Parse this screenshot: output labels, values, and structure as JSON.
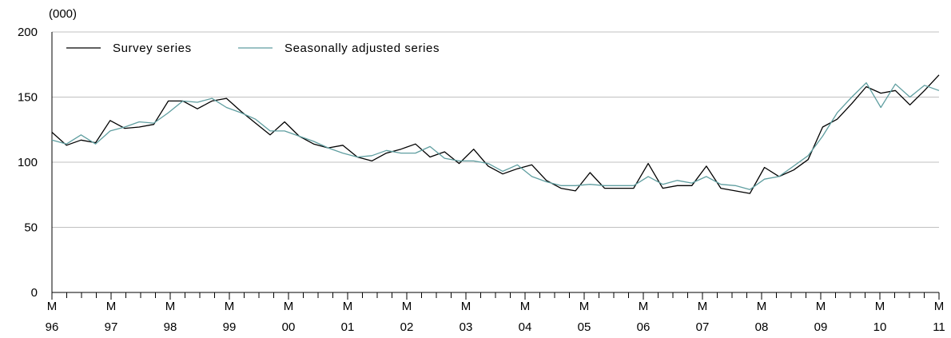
{
  "chart_data": {
    "type": "line",
    "unit_label": "(000)",
    "ylim": [
      0,
      200
    ],
    "y_ticks": [
      0,
      50,
      100,
      150,
      200
    ],
    "grid": "horizontal",
    "legend_position": "top-left",
    "x_period_start": "M 96",
    "x_period_end": "M 11",
    "x_tick_labels": [
      {
        "top": "M",
        "bottom": "96"
      },
      {
        "top": "M",
        "bottom": "97"
      },
      {
        "top": "M",
        "bottom": "98"
      },
      {
        "top": "M",
        "bottom": "99"
      },
      {
        "top": "M",
        "bottom": "00"
      },
      {
        "top": "M",
        "bottom": "01"
      },
      {
        "top": "M",
        "bottom": "02"
      },
      {
        "top": "M",
        "bottom": "03"
      },
      {
        "top": "M",
        "bottom": "04"
      },
      {
        "top": "M",
        "bottom": "05"
      },
      {
        "top": "M",
        "bottom": "06"
      },
      {
        "top": "M",
        "bottom": "07"
      },
      {
        "top": "M",
        "bottom": "08"
      },
      {
        "top": "M",
        "bottom": "09"
      },
      {
        "top": "M",
        "bottom": "10"
      },
      {
        "top": "M",
        "bottom": "11"
      }
    ],
    "series": [
      {
        "name": "Survey series",
        "color": "#000000",
        "values": [
          123,
          113,
          117,
          115,
          132,
          126,
          127,
          129,
          147,
          147,
          141,
          147,
          149,
          139,
          130,
          121,
          131,
          120,
          114,
          111,
          113,
          104,
          101,
          107,
          110,
          114,
          104,
          108,
          99,
          110,
          97,
          91,
          95,
          98,
          86,
          80,
          78,
          92,
          80,
          80,
          80,
          99,
          80,
          82,
          82,
          97,
          80,
          78,
          76,
          96,
          89,
          94,
          102,
          127,
          133,
          145,
          158,
          153,
          155,
          144,
          155,
          167
        ]
      },
      {
        "name": "Seasonally adjusted series",
        "color": "#5f9ea0",
        "values": [
          117,
          114,
          121,
          114,
          124,
          127,
          131,
          130,
          138,
          147,
          146,
          149,
          142,
          138,
          133,
          124,
          124,
          120,
          116,
          111,
          107,
          104,
          105,
          109,
          107,
          107,
          112,
          103,
          101,
          101,
          99,
          93,
          98,
          89,
          85,
          82,
          82,
          83,
          82,
          82,
          82,
          89,
          83,
          86,
          84,
          89,
          83,
          82,
          79,
          87,
          89,
          97,
          105,
          120,
          138,
          150,
          161,
          142,
          160,
          150,
          159,
          155
        ]
      }
    ]
  }
}
